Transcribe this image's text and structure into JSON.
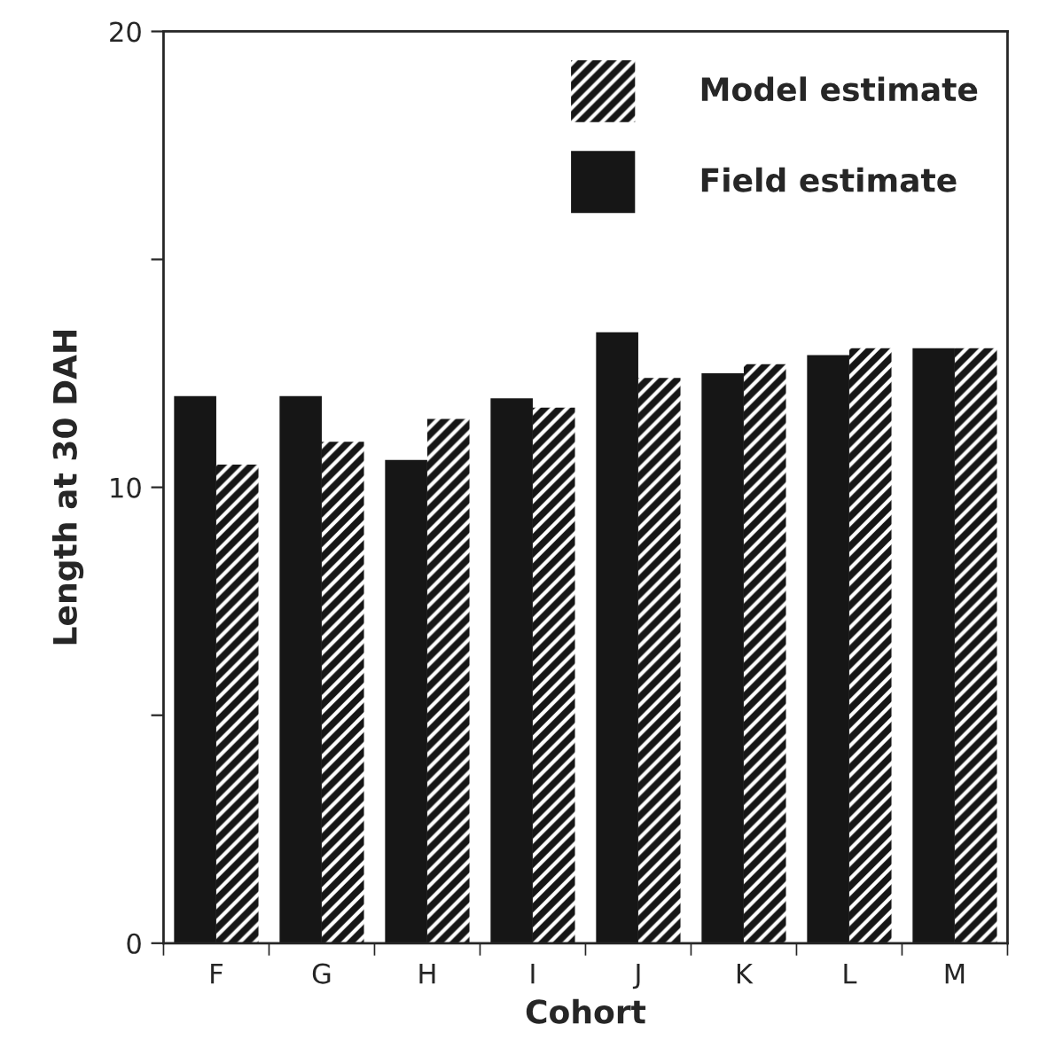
{
  "chart_data": {
    "type": "bar",
    "xlabel": "Cohort",
    "ylabel": "Length at 30 DAH",
    "categories": [
      "F",
      "G",
      "H",
      "I",
      "J",
      "K",
      "L",
      "M"
    ],
    "series": [
      {
        "name": "Field estimate",
        "color": "#161616",
        "values": [
          12.0,
          12.0,
          10.6,
          11.95,
          13.4,
          12.5,
          12.9,
          13.05
        ]
      },
      {
        "name": "Model estimate",
        "color": "#161616",
        "values": [
          10.5,
          11.0,
          11.5,
          11.75,
          12.4,
          12.7,
          13.05,
          13.05
        ]
      }
    ],
    "ylim": [
      0,
      20
    ],
    "yticks": [
      0,
      {
        "value": 5,
        "label": null
      },
      10,
      {
        "value": 15,
        "label": null
      },
      20
    ],
    "legend": "top right",
    "grid": false
  }
}
